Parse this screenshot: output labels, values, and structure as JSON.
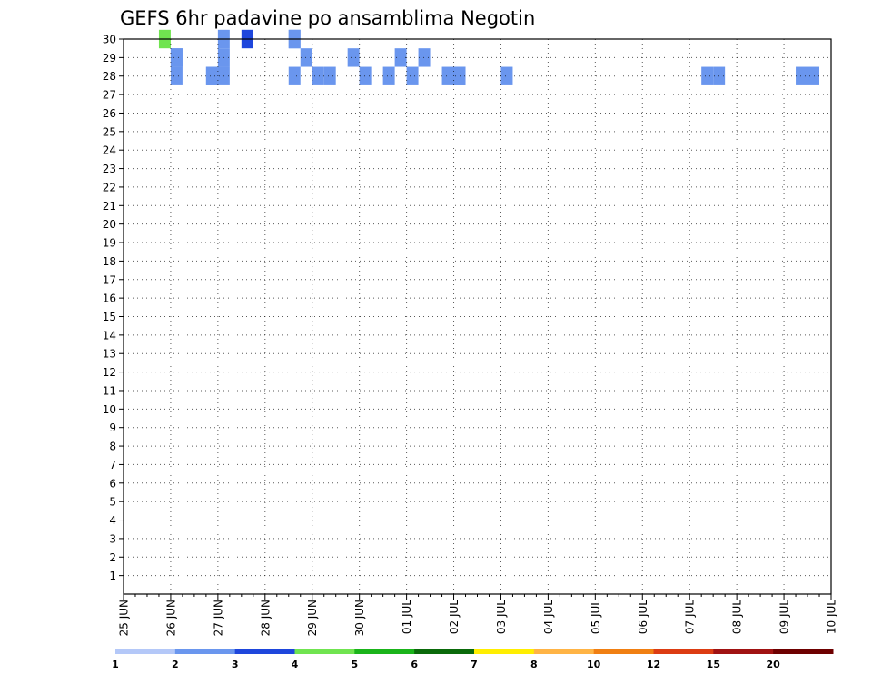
{
  "chart_data": {
    "type": "heatmap",
    "title": "GEFS 6hr padavine po ansamblima Negotin",
    "xlabel": "",
    "ylabel": "",
    "x_tick_labels": [
      "25 JUN",
      "26 JUN",
      "27 JUN",
      "28 JUN",
      "29 JUN",
      "30 JUN",
      "01 JUL",
      "02 JUL",
      "03 JUL",
      "04 JUL",
      "05 JUL",
      "06 JUL",
      "07 JUL",
      "08 JUL",
      "09 JUL",
      "10 JUL"
    ],
    "y_tick_labels": [
      "1",
      "2",
      "3",
      "4",
      "5",
      "6",
      "7",
      "8",
      "9",
      "10",
      "11",
      "12",
      "13",
      "14",
      "15",
      "16",
      "17",
      "18",
      "19",
      "20",
      "21",
      "22",
      "23",
      "24",
      "25",
      "26",
      "27",
      "28",
      "29",
      "30"
    ],
    "xlim": [
      0,
      15
    ],
    "ylim": [
      0,
      30
    ],
    "x_unit": "days since 25 JUN 00Z",
    "grid": true,
    "legend": {
      "placement": "bottom",
      "breaks": [
        1,
        2,
        3,
        4,
        5,
        6,
        7,
        8,
        10,
        12,
        15,
        20
      ],
      "labels": [
        "1",
        "2",
        "3",
        "4",
        "5",
        "6",
        "7",
        "8",
        "10",
        "12",
        "15",
        "20"
      ],
      "colors": [
        "#b4c8f8",
        "#6a96ee",
        "#1e46dc",
        "#70e450",
        "#1ab41a",
        "#0a6a0a",
        "#ffee00",
        "#ffb445",
        "#f07f12",
        "#dc3c12",
        "#a01212",
        "#6e0000"
      ]
    },
    "cells": [
      [
        0.75,
        30,
        3
      ],
      [
        2.5,
        30,
        2
      ],
      [
        3.5,
        30,
        1
      ],
      [
        3.5,
        30,
        1
      ],
      [
        1.0,
        29,
        1
      ],
      [
        2.0,
        29,
        1
      ],
      [
        3.75,
        29,
        1
      ],
      [
        4.75,
        29,
        1
      ],
      [
        5.75,
        29,
        1
      ],
      [
        6.25,
        29,
        1
      ],
      [
        1.0,
        28,
        1
      ],
      [
        1.75,
        28,
        1
      ],
      [
        1.75,
        28,
        1
      ],
      [
        2.0,
        28,
        1
      ],
      [
        3.5,
        28,
        1
      ],
      [
        4.0,
        28,
        1
      ],
      [
        4.25,
        28,
        1
      ],
      [
        5.0,
        28,
        1
      ],
      [
        6.0,
        28,
        1
      ],
      [
        7.0,
        28,
        1
      ],
      [
        7.0,
        28,
        1
      ],
      [
        5.5,
        28,
        1
      ],
      [
        6.75,
        28,
        1
      ],
      [
        8.0,
        28,
        1
      ],
      [
        12.25,
        28,
        1
      ],
      [
        12.5,
        28,
        1
      ],
      [
        14.25,
        28,
        1
      ],
      [
        14.5,
        28,
        1
      ],
      [
        1.0,
        29,
        1
      ],
      [
        2.0,
        30,
        1
      ]
    ]
  }
}
